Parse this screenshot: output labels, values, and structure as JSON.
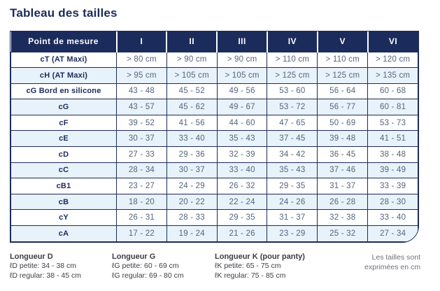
{
  "title": "Tableau des tailles",
  "colors": {
    "navy": "#1b2b5c",
    "row_alt": "#e8f2fa",
    "value_text": "#55657d",
    "header_text": "#ffffff",
    "footer_text": "#3d3d44",
    "note_text": "#70707a"
  },
  "table": {
    "header": [
      "Point de mesure",
      "I",
      "II",
      "III",
      "IV",
      "V",
      "VI"
    ],
    "rows": [
      {
        "label": "cT (AT Maxi)",
        "values": [
          "> 80 cm",
          "> 90 cm",
          "> 90 cm",
          "> 110 cm",
          "> 110 cm",
          "> 120 cm"
        ]
      },
      {
        "label": "cH (AT Maxi)",
        "values": [
          "> 95 cm",
          "> 105 cm",
          "> 105 cm",
          "> 125 cm",
          "> 125 cm",
          "> 135 cm"
        ]
      },
      {
        "label": "cG  Bord en silicone",
        "values": [
          "43 - 48",
          "45 - 52",
          "49 - 56",
          "53 - 60",
          "56 - 64",
          "60 - 68"
        ]
      },
      {
        "label": "cG",
        "values": [
          "43 - 57",
          "45 - 62",
          "49 - 67",
          "53 - 72",
          "56 - 77",
          "60 - 81"
        ]
      },
      {
        "label": "cF",
        "values": [
          "39 - 52",
          "41 - 56",
          "44 - 60",
          "47 - 65",
          "50 - 69",
          "53 - 73"
        ]
      },
      {
        "label": "cE",
        "values": [
          "30 - 37",
          "33 - 40",
          "35 - 43",
          "37 - 45",
          "39 - 48",
          "41 - 51"
        ]
      },
      {
        "label": "cD",
        "values": [
          "27 - 33",
          "29 - 36",
          "32 - 39",
          "34 - 42",
          "36 - 45",
          "38 - 48"
        ]
      },
      {
        "label": "cC",
        "values": [
          "28 - 34",
          "30 - 37",
          "33 - 40",
          "35 - 43",
          "37 - 46",
          "39 - 49"
        ]
      },
      {
        "label": "cB1",
        "values": [
          "23 - 27",
          "24 - 29",
          "26 - 32",
          "29 - 35",
          "31 - 37",
          "33 - 39"
        ]
      },
      {
        "label": "cB",
        "values": [
          "18 - 20",
          "20 - 22",
          "22 - 24",
          "24 - 26",
          "26 - 28",
          "28 - 30"
        ]
      },
      {
        "label": "cY",
        "values": [
          "26 - 31",
          "28 - 33",
          "29 - 35",
          "31 - 37",
          "32 - 38",
          "33 - 40"
        ]
      },
      {
        "label": "cA",
        "values": [
          "17 - 22",
          "19 - 24",
          "21 - 26",
          "23 - 29",
          "25 - 32",
          "27 - 34"
        ]
      }
    ]
  },
  "footer": {
    "groups": [
      {
        "title": "Longueur D",
        "lines": [
          "ℓD petite: 34 - 38 cm",
          "ℓD regular: 38 - 45 cm"
        ]
      },
      {
        "title": "Longueur G",
        "lines": [
          "ℓG petite: 60 - 69 cm",
          "ℓG regular: 69 - 80 cm"
        ]
      },
      {
        "title": "Longueur K (pour panty)",
        "lines": [
          "ℓK petite: 65 - 75 cm",
          "ℓK regular: 75 - 85 cm"
        ]
      }
    ],
    "note": [
      "Les tailles sont",
      "exprimées en cm"
    ]
  }
}
